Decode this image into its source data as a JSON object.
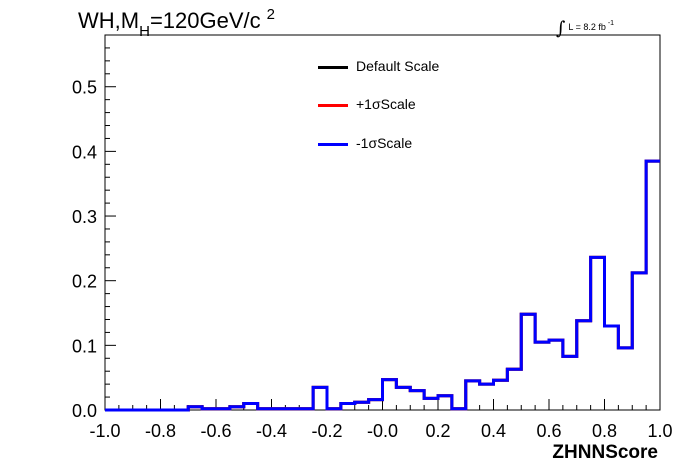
{
  "title": {
    "prefix": "WH,M",
    "subscript": "H",
    "main": "=120GeV/c",
    "superscript": "2"
  },
  "luminosity": {
    "symbol": "∫",
    "text": "L = 8.2 fb",
    "superscript": "-1"
  },
  "chart_data": {
    "type": "histogram",
    "xlabel": "ZHNNScore",
    "ylabel": "",
    "xlim": [
      -1.0,
      1.0
    ],
    "ylim": [
      0.0,
      0.58
    ],
    "x_ticks": [
      "-1.0",
      "-0.8",
      "-0.6",
      "-0.4",
      "-0.2",
      "-0.0",
      "0.2",
      "0.4",
      "0.6",
      "0.8",
      "1.0"
    ],
    "y_ticks": [
      "0.0",
      "0.1",
      "0.2",
      "0.3",
      "0.4",
      "0.5"
    ],
    "bin_width": 0.05,
    "bin_edges_start": -1.0,
    "grid": false,
    "legend_position": "top-center",
    "series": [
      {
        "name": "Default Scale",
        "color": "#000000",
        "values": [
          0.0,
          0.0,
          0.0,
          0.0,
          0.0,
          0.0,
          0.005,
          0.002,
          0.002,
          0.005,
          0.01,
          0.002,
          0.002,
          0.002,
          0.002,
          0.035,
          0.002,
          0.01,
          0.012,
          0.016,
          0.047,
          0.035,
          0.03,
          0.018,
          0.022,
          0.002,
          0.045,
          0.04,
          0.046,
          0.063,
          0.148,
          0.105,
          0.108,
          0.083,
          0.138,
          0.236,
          0.13,
          0.096,
          0.212,
          0.385
        ]
      },
      {
        "name": "+1σScale",
        "color": "#ff0000",
        "values": [
          0.0,
          0.0,
          0.0,
          0.0,
          0.0,
          0.0,
          0.005,
          0.002,
          0.002,
          0.005,
          0.01,
          0.002,
          0.002,
          0.002,
          0.002,
          0.035,
          0.002,
          0.01,
          0.012,
          0.016,
          0.047,
          0.035,
          0.03,
          0.018,
          0.022,
          0.002,
          0.045,
          0.04,
          0.046,
          0.063,
          0.148,
          0.105,
          0.108,
          0.083,
          0.138,
          0.236,
          0.13,
          0.096,
          0.212,
          0.385
        ]
      },
      {
        "name": "-1σScale",
        "color": "#0000ff",
        "values": [
          0.0,
          0.0,
          0.0,
          0.0,
          0.0,
          0.0,
          0.005,
          0.002,
          0.002,
          0.005,
          0.01,
          0.002,
          0.002,
          0.002,
          0.002,
          0.035,
          0.002,
          0.01,
          0.012,
          0.016,
          0.047,
          0.035,
          0.03,
          0.018,
          0.022,
          0.002,
          0.045,
          0.04,
          0.046,
          0.063,
          0.148,
          0.105,
          0.108,
          0.083,
          0.138,
          0.236,
          0.13,
          0.096,
          0.212,
          0.385
        ]
      }
    ]
  }
}
